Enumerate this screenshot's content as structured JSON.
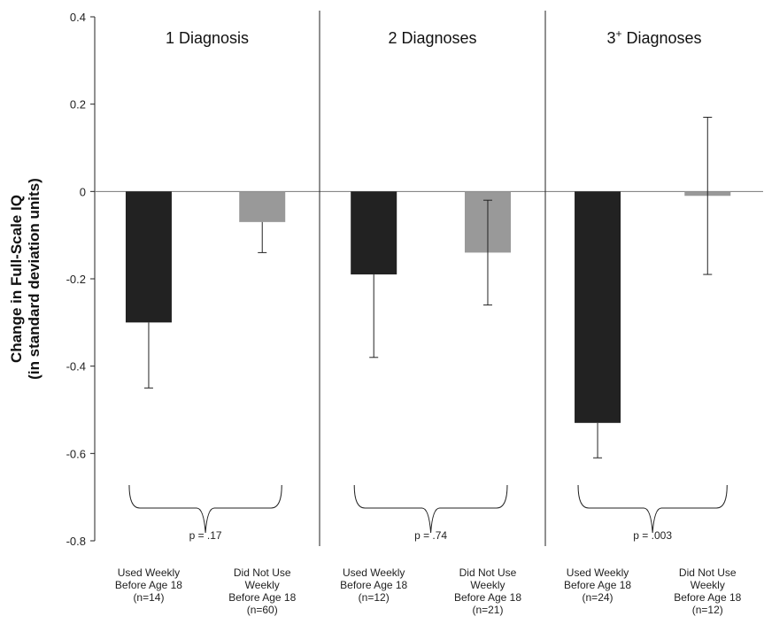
{
  "chart_data": {
    "type": "bar",
    "ylabel_lines": [
      "Change in Full-Scale IQ",
      "(in standard deviation units)"
    ],
    "ylim": [
      -0.8,
      0.4
    ],
    "yticks": [
      "0.4",
      "0.2",
      "0",
      "-0.2",
      "-0.4",
      "-0.6",
      "-0.8"
    ],
    "ytick_values": [
      0.4,
      0.2,
      0,
      -0.2,
      -0.4,
      -0.6,
      -0.8
    ],
    "legend": "none",
    "grid": false,
    "colors": {
      "used": "#222222",
      "not_used": "#999999"
    },
    "panels": [
      {
        "title": "1 Diagnosis",
        "title_sup": "",
        "p_value": "p = .17",
        "bars": [
          {
            "group": "used",
            "label_lines": [
              "Used Weekly",
              "Before Age 18",
              "(n=14)"
            ],
            "value": -0.3,
            "err_low": -0.45,
            "err_high": -0.3
          },
          {
            "group": "not_used",
            "label_lines": [
              "Did Not Use",
              "Weekly",
              "Before Age 18",
              "(n=60)"
            ],
            "value": -0.07,
            "err_low": -0.14,
            "err_high": -0.07
          }
        ]
      },
      {
        "title": "2 Diagnoses",
        "title_sup": "",
        "p_value": "p = .74",
        "bars": [
          {
            "group": "used",
            "label_lines": [
              "Used Weekly",
              "Before Age 18",
              "(n=12)"
            ],
            "value": -0.19,
            "err_low": -0.38,
            "err_high": -0.19
          },
          {
            "group": "not_used",
            "label_lines": [
              "Did Not Use",
              "Weekly",
              "Before Age 18",
              "(n=21)"
            ],
            "value": -0.14,
            "err_low": -0.26,
            "err_high": -0.02
          }
        ]
      },
      {
        "title": "3",
        "title_sup": "+",
        "title_rest": " Diagnoses",
        "p_value": "p = .003",
        "bars": [
          {
            "group": "used",
            "label_lines": [
              "Used Weekly",
              "Before Age 18",
              "(n=24)"
            ],
            "value": -0.53,
            "err_low": -0.61,
            "err_high": -0.53
          },
          {
            "group": "not_used",
            "label_lines": [
              "Did Not Use",
              "Weekly",
              "Before Age 18",
              "(n=12)"
            ],
            "value": -0.01,
            "err_low": -0.19,
            "err_high": 0.17
          }
        ]
      }
    ]
  }
}
